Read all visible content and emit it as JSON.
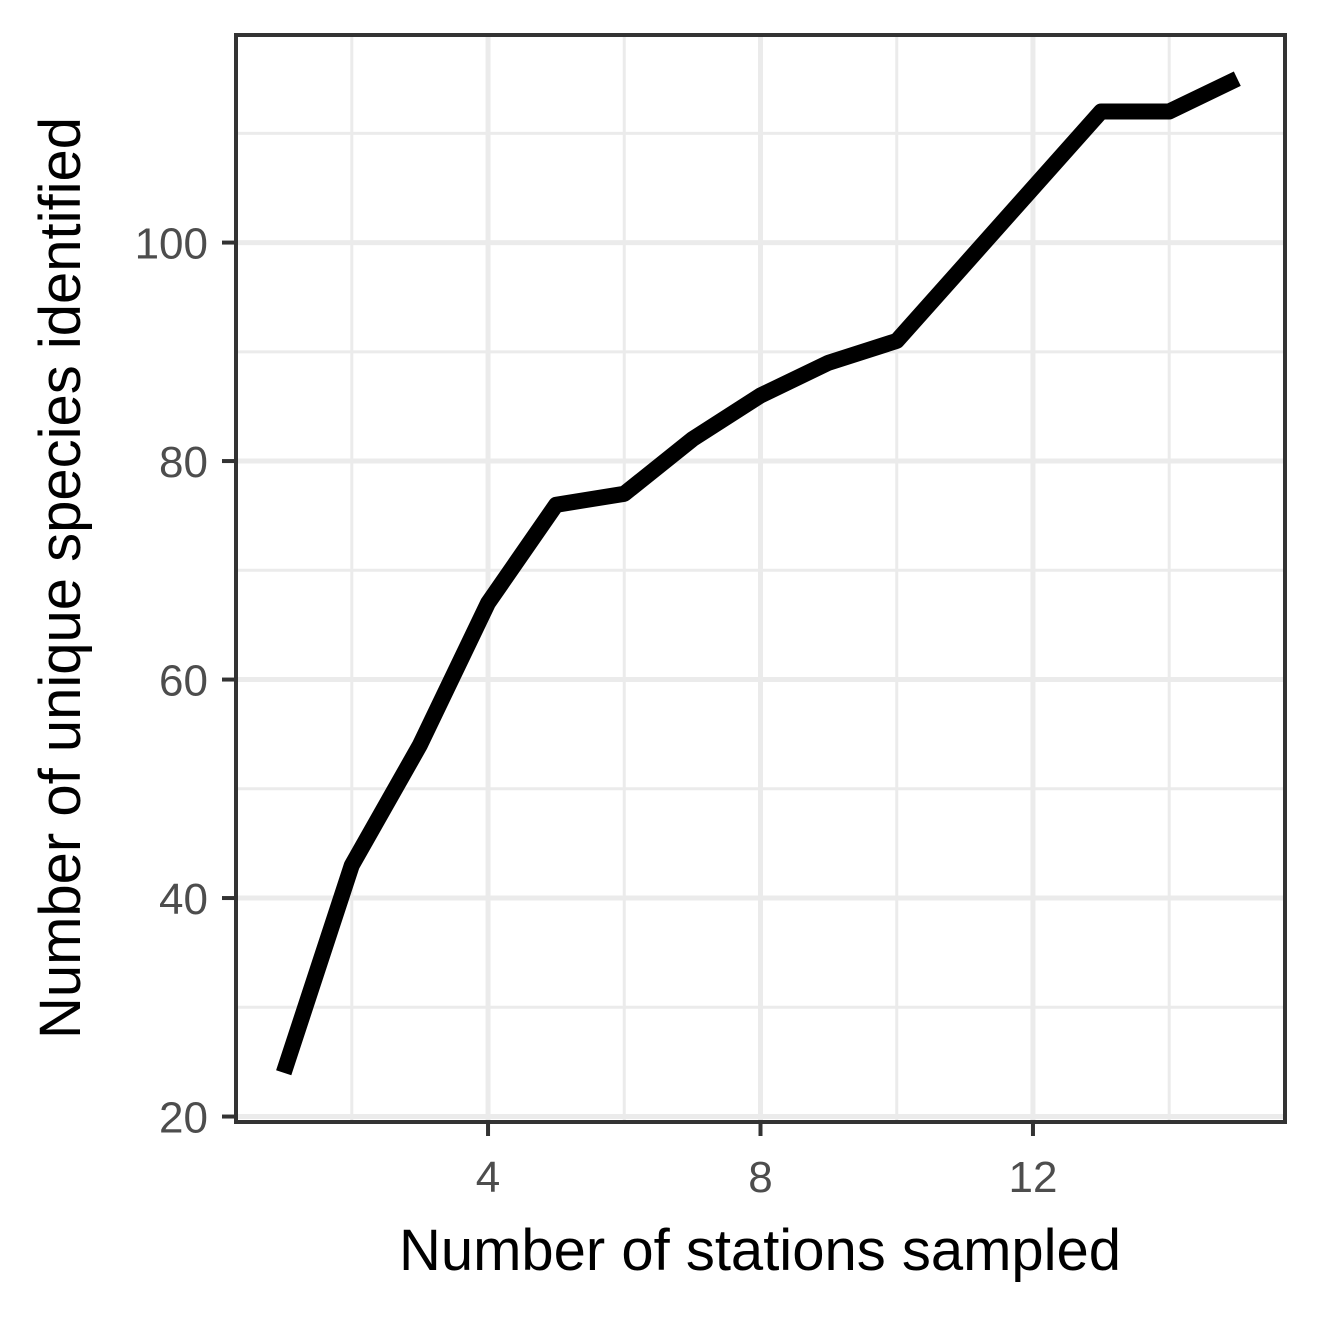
{
  "chart_data": {
    "type": "line",
    "title": "",
    "xlabel": "Number of stations sampled",
    "ylabel": "Number of unique species identified",
    "x": [
      1,
      2,
      3,
      4,
      5,
      6,
      7,
      8,
      9,
      10,
      11,
      12,
      13,
      14,
      15
    ],
    "series": [
      {
        "values": [
          24,
          43,
          54,
          67,
          76,
          77,
          82,
          86,
          89,
          91,
          98,
          105,
          112,
          112,
          115
        ]
      }
    ],
    "xlim": [
      0.3,
      15.7
    ],
    "ylim": [
      19.5,
      119
    ],
    "x_ticks": [
      4,
      8,
      12
    ],
    "x_minor_ticks": [
      2,
      6,
      10,
      14
    ],
    "y_ticks": [
      20,
      40,
      60,
      80,
      100
    ],
    "y_minor_ticks": [
      30,
      50,
      70,
      90,
      110
    ],
    "grid": true,
    "legend": "none",
    "line_color": "#000000",
    "grid_color": "#ebebeb"
  }
}
